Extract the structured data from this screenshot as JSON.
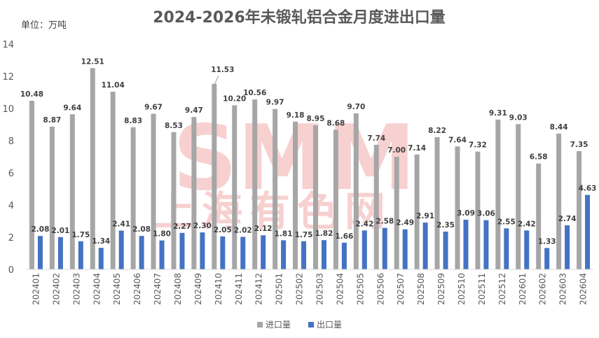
{
  "chart_data": {
    "type": "bar",
    "title": "2024-2026年未锻轧铝合金月度进出口量",
    "unit_label": "单位：万吨",
    "categories": [
      "202401",
      "202402",
      "202403",
      "202404",
      "202405",
      "202406",
      "202407",
      "202408",
      "202409",
      "202410",
      "202411",
      "202412",
      "202501",
      "202502",
      "202503",
      "202504",
      "202505",
      "202506",
      "202507",
      "202508",
      "202509",
      "202510",
      "202511",
      "202512",
      "202601",
      "202602",
      "202603",
      "202604"
    ],
    "series": [
      {
        "name": "进口量",
        "color": "#a6a6a6",
        "values": [
          10.48,
          8.87,
          9.64,
          12.51,
          11.04,
          8.83,
          9.67,
          8.53,
          9.47,
          11.53,
          10.2,
          10.56,
          9.97,
          9.18,
          8.95,
          8.68,
          9.7,
          7.74,
          7.0,
          7.14,
          8.22,
          7.64,
          7.32,
          9.31,
          9.03,
          6.58,
          8.44,
          7.35
        ],
        "labels": [
          "10.48",
          "8.87",
          "9.64",
          "12.51",
          "11.04",
          "8.83",
          "9.67",
          "8.53",
          "9.47",
          "11.53",
          "10.20",
          "10.56",
          "9.97",
          "9.18",
          "8.95",
          "8.68",
          "9.70",
          "7.74",
          "7.00",
          "7.14",
          "8.22",
          "7.64",
          "7.32",
          "9.31",
          "9.03",
          "6.58",
          "8.44",
          "7.35"
        ]
      },
      {
        "name": "出口量",
        "color": "#4472c4",
        "values": [
          2.08,
          2.01,
          1.75,
          1.34,
          2.41,
          2.08,
          1.8,
          2.27,
          2.3,
          2.05,
          2.02,
          2.12,
          1.81,
          1.75,
          1.82,
          1.66,
          2.42,
          2.58,
          2.49,
          2.91,
          2.35,
          3.09,
          3.06,
          2.55,
          2.42,
          1.33,
          2.74,
          4.63
        ],
        "labels": [
          "2.08",
          "2.01",
          "1.75",
          "1.34",
          "2.41",
          "2.08",
          "1.80",
          "2.27",
          "2.30",
          "2.05",
          "2.02",
          "2.12",
          "1.81",
          "1.75",
          "1.82",
          "1.66",
          "2.42",
          "2.58",
          "2.49",
          "2.91",
          "2.35",
          "3.09",
          "3.06",
          "2.55",
          "2.42",
          "1.33",
          "2.74",
          "4.63"
        ]
      }
    ],
    "ylim": [
      0,
      14
    ],
    "yticks": [
      "0",
      "2",
      "4",
      "6",
      "8",
      "10",
      "12",
      "14"
    ],
    "grid": false,
    "legend": "bottom-center"
  },
  "watermark": {
    "brand": "SMM",
    "name": "上海有色网"
  }
}
